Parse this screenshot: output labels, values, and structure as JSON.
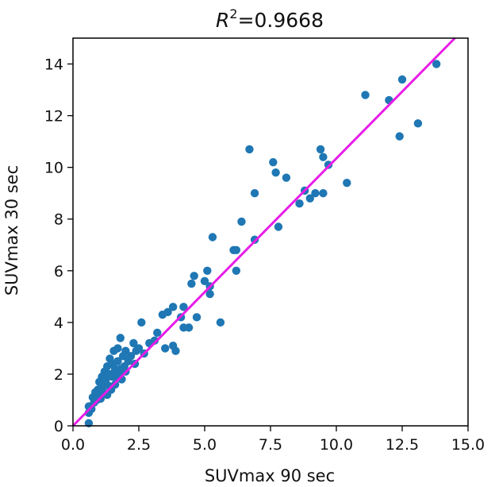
{
  "chart_data": {
    "type": "scatter",
    "title": {
      "r": "R",
      "exp": "2",
      "rest": "=0.9668"
    },
    "xlabel": "SUVmax 90 sec",
    "ylabel": "SUVmax 30 sec",
    "xlim": [
      0.0,
      15.0
    ],
    "ylim": [
      0,
      15
    ],
    "xticks": [
      0.0,
      2.5,
      5.0,
      7.5,
      10.0,
      12.5,
      15.0
    ],
    "xtick_labels": [
      "0.0",
      "2.5",
      "5.0",
      "7.5",
      "10.0",
      "12.5",
      "15.0"
    ],
    "yticks": [
      0,
      2,
      4,
      6,
      8,
      10,
      12,
      14
    ],
    "ytick_labels": [
      "0",
      "2",
      "4",
      "6",
      "8",
      "10",
      "12",
      "14"
    ],
    "grid": false,
    "colors": {
      "points": "#1f77b4",
      "fit_line": "#e81ce8",
      "axes": "#000000"
    },
    "fit_line": {
      "x": [
        0.0,
        14.5
      ],
      "y": [
        0.0,
        15.0
      ]
    },
    "points": [
      {
        "x": 0.6,
        "y": 0.1
      },
      {
        "x": 0.6,
        "y": 0.5
      },
      {
        "x": 0.6,
        "y": 0.75
      },
      {
        "x": 0.7,
        "y": 0.65
      },
      {
        "x": 0.75,
        "y": 1.1
      },
      {
        "x": 0.8,
        "y": 0.9
      },
      {
        "x": 0.85,
        "y": 1.3
      },
      {
        "x": 0.9,
        "y": 1.0
      },
      {
        "x": 0.95,
        "y": 1.4
      },
      {
        "x": 1.0,
        "y": 1.2
      },
      {
        "x": 1.0,
        "y": 1.7
      },
      {
        "x": 1.05,
        "y": 1.05
      },
      {
        "x": 1.1,
        "y": 1.5
      },
      {
        "x": 1.1,
        "y": 1.9
      },
      {
        "x": 1.15,
        "y": 1.3
      },
      {
        "x": 1.2,
        "y": 1.6
      },
      {
        "x": 1.2,
        "y": 2.1
      },
      {
        "x": 1.25,
        "y": 1.8
      },
      {
        "x": 1.3,
        "y": 1.2
      },
      {
        "x": 1.3,
        "y": 2.3
      },
      {
        "x": 1.35,
        "y": 1.55
      },
      {
        "x": 1.4,
        "y": 2.0
      },
      {
        "x": 1.4,
        "y": 2.6
      },
      {
        "x": 1.45,
        "y": 1.4
      },
      {
        "x": 1.5,
        "y": 1.9
      },
      {
        "x": 1.5,
        "y": 2.4
      },
      {
        "x": 1.55,
        "y": 2.9
      },
      {
        "x": 1.6,
        "y": 1.6
      },
      {
        "x": 1.6,
        "y": 2.2
      },
      {
        "x": 1.65,
        "y": 1.9
      },
      {
        "x": 1.7,
        "y": 2.5
      },
      {
        "x": 1.7,
        "y": 3.0
      },
      {
        "x": 1.75,
        "y": 2.0
      },
      {
        "x": 1.8,
        "y": 3.4
      },
      {
        "x": 1.8,
        "y": 2.2
      },
      {
        "x": 1.85,
        "y": 1.8
      },
      {
        "x": 1.9,
        "y": 2.7
      },
      {
        "x": 1.95,
        "y": 2.3
      },
      {
        "x": 2.0,
        "y": 2.1
      },
      {
        "x": 2.0,
        "y": 2.9
      },
      {
        "x": 2.1,
        "y": 2.5
      },
      {
        "x": 2.2,
        "y": 2.7
      },
      {
        "x": 2.3,
        "y": 3.2
      },
      {
        "x": 2.35,
        "y": 2.4
      },
      {
        "x": 2.4,
        "y": 2.9
      },
      {
        "x": 2.5,
        "y": 3.0
      },
      {
        "x": 2.6,
        "y": 4.0
      },
      {
        "x": 2.7,
        "y": 2.8
      },
      {
        "x": 2.9,
        "y": 3.2
      },
      {
        "x": 3.1,
        "y": 3.3
      },
      {
        "x": 3.2,
        "y": 3.6
      },
      {
        "x": 3.4,
        "y": 4.3
      },
      {
        "x": 3.5,
        "y": 3.0
      },
      {
        "x": 3.6,
        "y": 4.4
      },
      {
        "x": 3.8,
        "y": 3.1
      },
      {
        "x": 3.8,
        "y": 4.6
      },
      {
        "x": 3.9,
        "y": 2.9
      },
      {
        "x": 4.1,
        "y": 4.2
      },
      {
        "x": 4.2,
        "y": 3.8
      },
      {
        "x": 4.2,
        "y": 4.6
      },
      {
        "x": 4.4,
        "y": 3.8
      },
      {
        "x": 4.5,
        "y": 5.5
      },
      {
        "x": 4.6,
        "y": 5.8
      },
      {
        "x": 4.7,
        "y": 4.2
      },
      {
        "x": 5.0,
        "y": 5.6
      },
      {
        "x": 5.1,
        "y": 6.0
      },
      {
        "x": 5.2,
        "y": 5.4
      },
      {
        "x": 5.2,
        "y": 5.1
      },
      {
        "x": 5.3,
        "y": 7.3
      },
      {
        "x": 5.6,
        "y": 4.0
      },
      {
        "x": 6.1,
        "y": 6.8
      },
      {
        "x": 6.2,
        "y": 6.8
      },
      {
        "x": 6.2,
        "y": 6.0
      },
      {
        "x": 6.4,
        "y": 7.9
      },
      {
        "x": 6.7,
        "y": 10.7
      },
      {
        "x": 6.9,
        "y": 9.0
      },
      {
        "x": 6.9,
        "y": 7.2
      },
      {
        "x": 7.6,
        "y": 10.2
      },
      {
        "x": 7.7,
        "y": 9.8
      },
      {
        "x": 7.8,
        "y": 7.7
      },
      {
        "x": 8.1,
        "y": 9.6
      },
      {
        "x": 8.6,
        "y": 8.6
      },
      {
        "x": 8.8,
        "y": 9.1
      },
      {
        "x": 9.0,
        "y": 8.8
      },
      {
        "x": 9.2,
        "y": 9.0
      },
      {
        "x": 9.4,
        "y": 10.7
      },
      {
        "x": 9.5,
        "y": 9.0
      },
      {
        "x": 9.5,
        "y": 10.4
      },
      {
        "x": 9.7,
        "y": 10.1
      },
      {
        "x": 10.4,
        "y": 9.4
      },
      {
        "x": 11.1,
        "y": 12.8
      },
      {
        "x": 12.0,
        "y": 12.6
      },
      {
        "x": 12.4,
        "y": 11.2
      },
      {
        "x": 12.5,
        "y": 13.4
      },
      {
        "x": 13.1,
        "y": 11.7
      },
      {
        "x": 13.8,
        "y": 14.0
      }
    ]
  }
}
